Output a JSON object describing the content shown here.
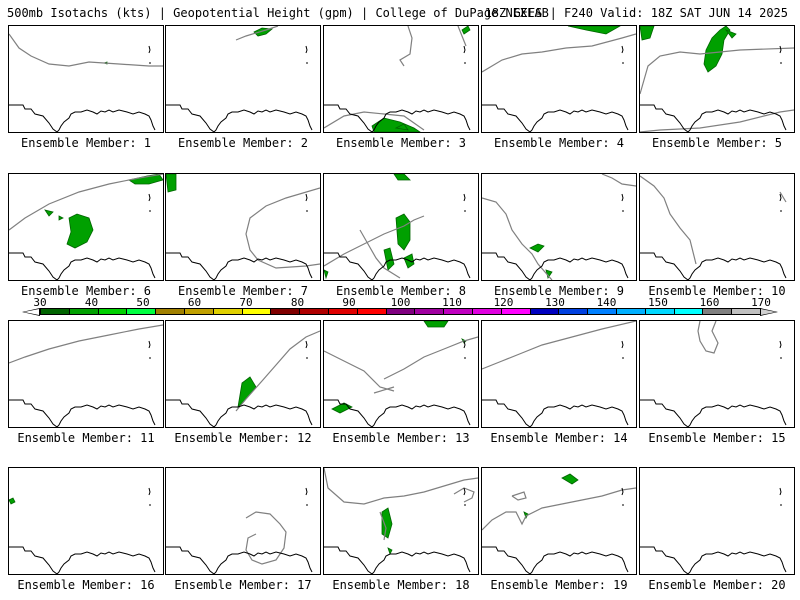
{
  "header": {
    "left": "500mb Isotachs (kts) | Geopotential Height (gpm) | College of DuPage NEXLAB",
    "right": "18Z GEFS | F240 Valid: 18Z SAT JUN 14 2025"
  },
  "colorbar": {
    "labels": [
      "30",
      "40",
      "50",
      "60",
      "70",
      "80",
      "90",
      "100",
      "110",
      "120",
      "130",
      "140",
      "150",
      "160",
      "170"
    ],
    "colors": [
      "#006400",
      "#00a000",
      "#00d000",
      "#00ff40",
      "#a08000",
      "#c0a000",
      "#e0d000",
      "#ffff00",
      "#800000",
      "#b00000",
      "#e00000",
      "#ff0000",
      "#800080",
      "#a000a0",
      "#c000c0",
      "#e000e0",
      "#ff00ff",
      "#0000c0",
      "#0040e0",
      "#0080ff",
      "#00b0ff",
      "#00d8ff",
      "#00ffff",
      "#808080",
      "#c0c0c0"
    ],
    "arrow_left_color": "#000000",
    "arrow_right_color": "#d0d0d0"
  },
  "colors": {
    "jet": "#00a000",
    "jet_dark": "#006400",
    "coast": "#000000",
    "height_contour": "#808080"
  },
  "members": [
    {
      "label": "Ensemble Member: 1"
    },
    {
      "label": "Ensemble Member: 2"
    },
    {
      "label": "Ensemble Member: 3"
    },
    {
      "label": "Ensemble Member: 4"
    },
    {
      "label": "Ensemble Member: 5"
    },
    {
      "label": "Ensemble Member: 6"
    },
    {
      "label": "Ensemble Member: 7"
    },
    {
      "label": "Ensemble Member: 8"
    },
    {
      "label": "Ensemble Member: 9"
    },
    {
      "label": "Ensemble Member: 10"
    },
    {
      "label": "Ensemble Member: 11"
    },
    {
      "label": "Ensemble Member: 12"
    },
    {
      "label": "Ensemble Member: 13"
    },
    {
      "label": "Ensemble Member: 14"
    },
    {
      "label": "Ensemble Member: 15"
    },
    {
      "label": "Ensemble Member: 16"
    },
    {
      "label": "Ensemble Member: 17"
    },
    {
      "label": "Ensemble Member: 18"
    },
    {
      "label": "Ensemble Member: 19"
    },
    {
      "label": "Ensemble Member: 20"
    }
  ]
}
